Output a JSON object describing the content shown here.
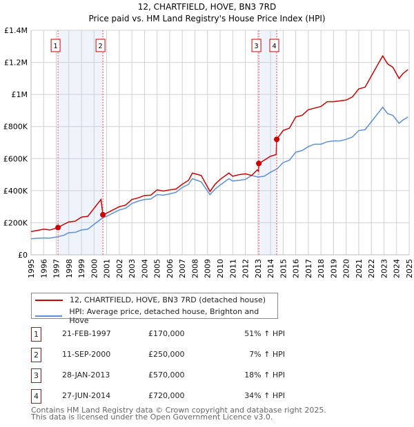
{
  "chart_data": {
    "type": "line",
    "title": "12, CHARTFIELD, HOVE, BN3 7RD",
    "subtitle": "Price paid vs. HM Land Registry's House Price Index (HPI)",
    "xlim": [
      1995,
      2025
    ],
    "ylim": [
      0,
      1400000
    ],
    "yticks": [
      {
        "v": 0,
        "label": "£0"
      },
      {
        "v": 200000,
        "label": "£200K"
      },
      {
        "v": 400000,
        "label": "£400K"
      },
      {
        "v": 600000,
        "label": "£600K"
      },
      {
        "v": 800000,
        "label": "£800K"
      },
      {
        "v": 1000000,
        "label": "£1M"
      },
      {
        "v": 1200000,
        "label": "£1.2M"
      },
      {
        "v": 1400000,
        "label": "£1.4M"
      }
    ],
    "xticks": [
      "1995",
      "1996",
      "1997",
      "1998",
      "1999",
      "2000",
      "2001",
      "2002",
      "2003",
      "2004",
      "2005",
      "2006",
      "2007",
      "2008",
      "2009",
      "2010",
      "2011",
      "2012",
      "2013",
      "2014",
      "2015",
      "2016",
      "2017",
      "2018",
      "2019",
      "2020",
      "2021",
      "2022",
      "2023",
      "2024",
      "2025"
    ],
    "grid": true,
    "series": [
      {
        "name": "12, CHARTFIELD, HOVE, BN3 7RD (detached house)",
        "color": "#cc0000",
        "points": [
          [
            1995,
            145
          ],
          [
            1995.5,
            152
          ],
          [
            1996,
            160
          ],
          [
            1996.5,
            155
          ],
          [
            1997.14,
            170
          ],
          [
            1997.6,
            190
          ],
          [
            1998,
            205
          ],
          [
            1998.5,
            210
          ],
          [
            1999,
            235
          ],
          [
            1999.5,
            240
          ],
          [
            2000,
            290
          ],
          [
            2000.55,
            345
          ],
          [
            2000.7,
            250
          ],
          [
            2001,
            260
          ],
          [
            2001.5,
            280
          ],
          [
            2002,
            300
          ],
          [
            2002.5,
            310
          ],
          [
            2003,
            345
          ],
          [
            2003.5,
            355
          ],
          [
            2004,
            370
          ],
          [
            2004.5,
            372
          ],
          [
            2005,
            405
          ],
          [
            2005.5,
            398
          ],
          [
            2006,
            405
          ],
          [
            2006.5,
            410
          ],
          [
            2007,
            440
          ],
          [
            2007.5,
            465
          ],
          [
            2007.8,
            510
          ],
          [
            2008.5,
            495
          ],
          [
            2009.2,
            395
          ],
          [
            2009.6,
            440
          ],
          [
            2010,
            470
          ],
          [
            2010.7,
            510
          ],
          [
            2011,
            490
          ],
          [
            2011.5,
            500
          ],
          [
            2012,
            505
          ],
          [
            2012.5,
            495
          ],
          [
            2012.95,
            530
          ],
          [
            2013.05,
            520
          ],
          [
            2013.08,
            570
          ],
          [
            2013.5,
            590
          ],
          [
            2014,
            615
          ],
          [
            2014.45,
            625
          ],
          [
            2014.49,
            720
          ],
          [
            2015,
            775
          ],
          [
            2015.5,
            790
          ],
          [
            2016,
            860
          ],
          [
            2016.5,
            870
          ],
          [
            2017,
            905
          ],
          [
            2017.5,
            915
          ],
          [
            2018,
            925
          ],
          [
            2018.5,
            955
          ],
          [
            2019,
            955
          ],
          [
            2019.5,
            960
          ],
          [
            2020,
            965
          ],
          [
            2020.5,
            985
          ],
          [
            2021,
            1035
          ],
          [
            2021.5,
            1045
          ],
          [
            2022,
            1115
          ],
          [
            2022.5,
            1185
          ],
          [
            2022.9,
            1240
          ],
          [
            2023.3,
            1190
          ],
          [
            2023.7,
            1170
          ],
          [
            2024.2,
            1100
          ],
          [
            2024.5,
            1130
          ],
          [
            2024.9,
            1155
          ]
        ]
      },
      {
        "name": "HPI: Average price, detached house, Brighton and Hove",
        "color": "#5b8fd6",
        "points": [
          [
            1995,
            100
          ],
          [
            1995.5,
            103
          ],
          [
            1996,
            105
          ],
          [
            1996.5,
            104
          ],
          [
            1997.14,
            113
          ],
          [
            1997.6,
            122
          ],
          [
            1998,
            138
          ],
          [
            1998.5,
            140
          ],
          [
            1999,
            155
          ],
          [
            1999.5,
            160
          ],
          [
            2000,
            190
          ],
          [
            2000.7,
            232
          ],
          [
            2001,
            240
          ],
          [
            2001.5,
            260
          ],
          [
            2002,
            280
          ],
          [
            2002.5,
            290
          ],
          [
            2003,
            320
          ],
          [
            2003.5,
            335
          ],
          [
            2004,
            345
          ],
          [
            2004.5,
            348
          ],
          [
            2005,
            375
          ],
          [
            2005.5,
            372
          ],
          [
            2006,
            380
          ],
          [
            2006.5,
            390
          ],
          [
            2007,
            420
          ],
          [
            2007.5,
            440
          ],
          [
            2007.8,
            475
          ],
          [
            2008.5,
            455
          ],
          [
            2009.2,
            375
          ],
          [
            2009.6,
            410
          ],
          [
            2010,
            435
          ],
          [
            2010.7,
            475
          ],
          [
            2011,
            460
          ],
          [
            2011.5,
            465
          ],
          [
            2012,
            470
          ],
          [
            2012.5,
            495
          ],
          [
            2013,
            485
          ],
          [
            2013.5,
            490
          ],
          [
            2014,
            515
          ],
          [
            2014.5,
            535
          ],
          [
            2015,
            575
          ],
          [
            2015.5,
            590
          ],
          [
            2016,
            640
          ],
          [
            2016.5,
            650
          ],
          [
            2017,
            675
          ],
          [
            2017.5,
            690
          ],
          [
            2018,
            690
          ],
          [
            2018.5,
            705
          ],
          [
            2019,
            710
          ],
          [
            2019.5,
            710
          ],
          [
            2020,
            720
          ],
          [
            2020.5,
            735
          ],
          [
            2021,
            775
          ],
          [
            2021.5,
            780
          ],
          [
            2022,
            830
          ],
          [
            2022.5,
            880
          ],
          [
            2022.9,
            920
          ],
          [
            2023.3,
            880
          ],
          [
            2023.7,
            870
          ],
          [
            2024.2,
            820
          ],
          [
            2024.5,
            840
          ],
          [
            2024.9,
            860
          ]
        ]
      }
    ],
    "sales": [
      {
        "num": "1",
        "x": 1997.14,
        "value": 170000,
        "date": "21-FEB-1997",
        "price": "£170,000",
        "hpi": "51% ↑ HPI"
      },
      {
        "num": "2",
        "x": 2000.7,
        "value": 250000,
        "date": "11-SEP-2000",
        "price": "£250,000",
        "hpi": "7% ↑ HPI"
      },
      {
        "num": "3",
        "x": 2013.07,
        "value": 570000,
        "date": "28-JAN-2013",
        "price": "£570,000",
        "hpi": "18% ↑ HPI"
      },
      {
        "num": "4",
        "x": 2014.49,
        "value": 720000,
        "date": "27-JUN-2014",
        "price": "£720,000",
        "hpi": "34% ↑ HPI"
      }
    ],
    "shaded_ranges": [
      [
        1997.14,
        2000.7
      ],
      [
        2013.07,
        2014.49
      ]
    ],
    "legend_placement": "below"
  },
  "footer": {
    "line1": "Contains HM Land Registry data © Crown copyright and database right 2025.",
    "line2": "This data is licensed under the Open Government Licence v3.0."
  }
}
